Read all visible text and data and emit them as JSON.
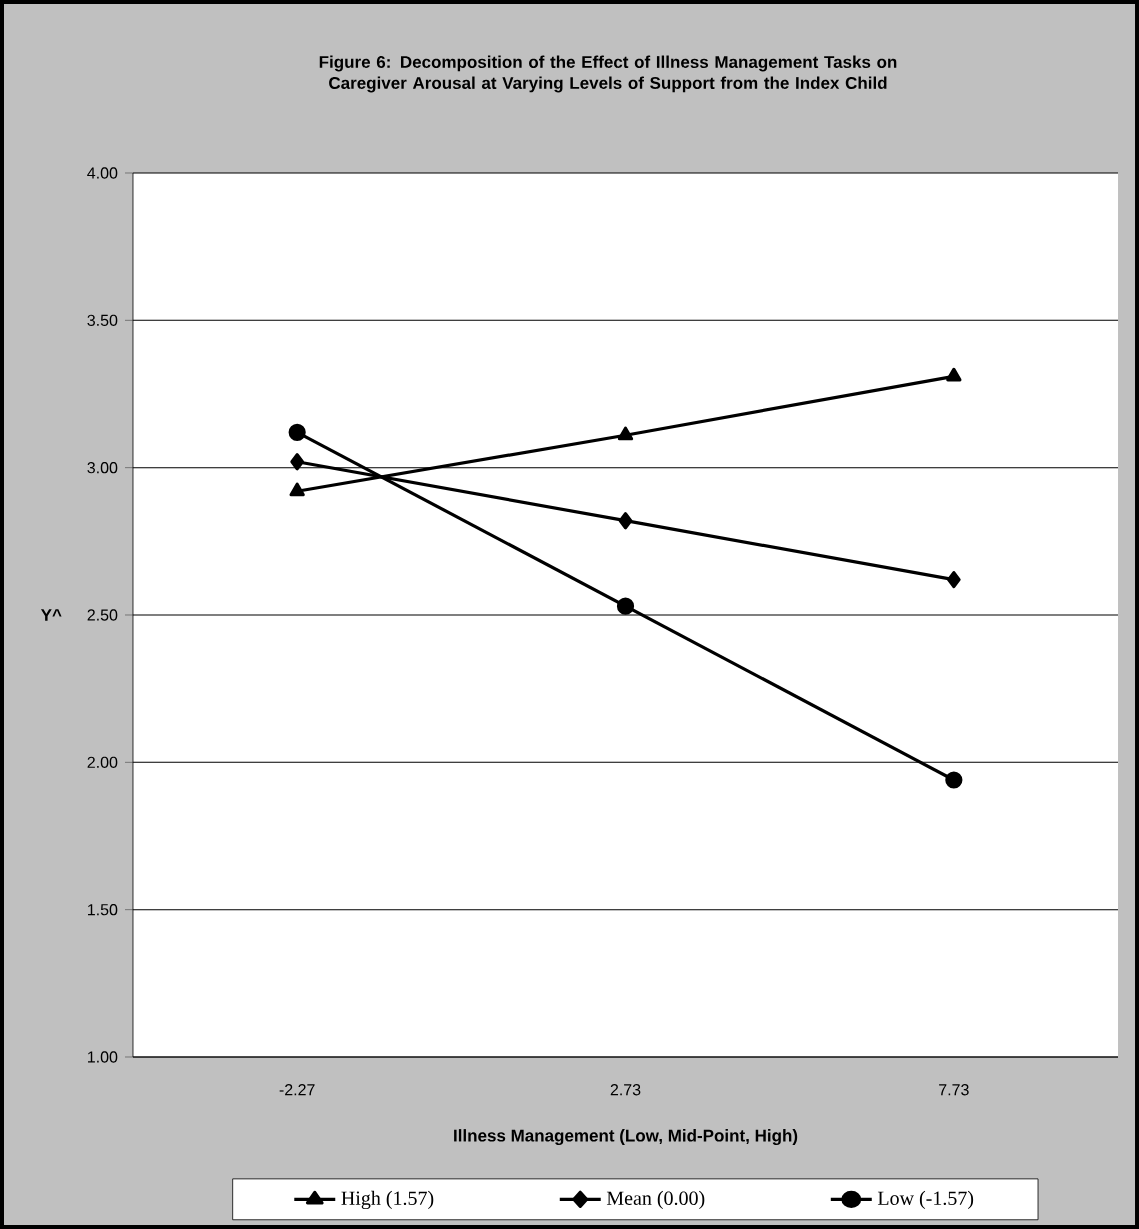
{
  "chart_data": {
    "type": "line",
    "title": "Figure 6: Decomposition of the Effect of Illness Management Tasks on Caregiver Arousal at Varying Levels of Support from the Index Child",
    "xlabel": "Illness Management (Low, Mid-Point, High)",
    "ylabel": "Y^",
    "categories": [
      "-2.27",
      "2.73",
      "7.73"
    ],
    "series": [
      {
        "name": "High (1.57)",
        "color": "#000000",
        "marker": "triangle",
        "values": [
          2.92,
          3.11,
          3.31
        ]
      },
      {
        "name": "Mean (0.00)",
        "color": "#000000",
        "marker": "diamond",
        "values": [
          3.02,
          2.82,
          2.62
        ]
      },
      {
        "name": "Low (-1.57)",
        "color": "#000000",
        "marker": "circle",
        "values": [
          3.12,
          2.53,
          1.94
        ]
      }
    ],
    "ylim": [
      1.0,
      4.0
    ],
    "yticks": [
      {
        "value": 1.0,
        "label": "1.00"
      },
      {
        "value": 1.5,
        "label": "1.50"
      },
      {
        "value": 2.0,
        "label": "2.00"
      },
      {
        "value": 2.5,
        "label": "2.50"
      },
      {
        "value": 3.0,
        "label": "3.00"
      },
      {
        "value": 3.5,
        "label": "3.50"
      },
      {
        "value": 4.0,
        "label": "4.00"
      }
    ],
    "grid": "y",
    "legend": "bottom",
    "line_style": "solid"
  }
}
